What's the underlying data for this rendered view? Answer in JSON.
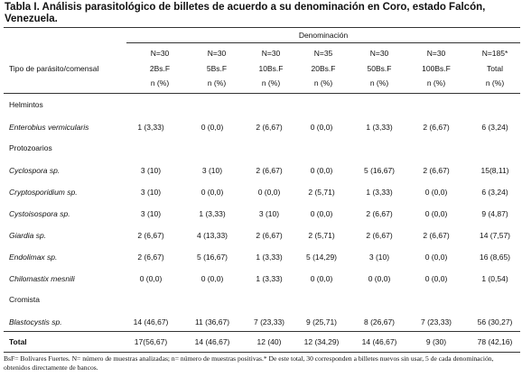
{
  "title": "Tabla I. Análisis parasitológico de billetes de acuerdo a su denominación en Coro, estado Falcón, Venezuela.",
  "table": {
    "group_header": "Denominación",
    "row_header": "Tipo de parásito/comensal",
    "columns": [
      {
        "n": "N=30",
        "denomination": "2Bs.F",
        "unit": "n (%)"
      },
      {
        "n": "N=30",
        "denomination": "5Bs.F",
        "unit": "n (%)"
      },
      {
        "n": "N=30",
        "denomination": "10Bs.F",
        "unit": "n (%)"
      },
      {
        "n": "N=35",
        "denomination": "20Bs.F",
        "unit": "n (%)"
      },
      {
        "n": "N=30",
        "denomination": "50Bs.F",
        "unit": "n (%)"
      },
      {
        "n": "N=30",
        "denomination": "100Bs.F",
        "unit": "n (%)"
      },
      {
        "n": "N=185*",
        "denomination": "Total",
        "unit": "n (%)"
      }
    ],
    "sections": [
      {
        "name": "Helmintos",
        "rows": [
          {
            "label": "Enterobius vermicularis",
            "values": [
              "1 (3,33)",
              "0 (0,0)",
              "2 (6,67)",
              "0 (0,0)",
              "1 (3,33)",
              "2 (6,67)",
              "6 (3,24)"
            ]
          }
        ]
      },
      {
        "name": "Protozoarios",
        "rows": [
          {
            "label": "Cyclospora sp.",
            "values": [
              "3 (10)",
              "3 (10)",
              "2 (6,67)",
              "0 (0,0)",
              "5 (16,67)",
              "2 (6,67)",
              "15(8,11)"
            ]
          },
          {
            "label": "Cryptosporidium sp.",
            "values": [
              "3 (10)",
              "0 (0,0)",
              "0 (0,0)",
              "2 (5,71)",
              "1 (3,33)",
              "0 (0,0)",
              "6 (3,24)"
            ]
          },
          {
            "label": "Cystoisospora sp.",
            "values": [
              "3 (10)",
              "1 (3,33)",
              "3 (10)",
              "0 (0,0)",
              "2 (6,67)",
              "0 (0,0)",
              "9 (4,87)"
            ]
          },
          {
            "label": "Giardia sp.",
            "values": [
              "2 (6,67)",
              "4 (13,33)",
              "2 (6,67)",
              "2 (5,71)",
              "2 (6,67)",
              "2 (6,67)",
              "14 (7,57)"
            ]
          },
          {
            "label": "Endolimax sp.",
            "values": [
              "2 (6,67)",
              "5 (16,67)",
              "1 (3,33)",
              "5 (14,29)",
              "3 (10)",
              "0 (0,0)",
              "16 (8,65)"
            ]
          },
          {
            "label": "Chilomastix mesnili",
            "values": [
              "0 (0,0)",
              "0 (0,0)",
              "1 (3,33)",
              "0 (0,0)",
              "0 (0,0)",
              "0 (0,0)",
              "1 (0,54)"
            ]
          }
        ]
      },
      {
        "name": "Cromista",
        "rows": [
          {
            "label": "Blastocystis sp.",
            "values": [
              "14 (46,67)",
              "11 (36,67)",
              "7 (23,33)",
              "9 (25,71)",
              "8 (26,67)",
              "7 (23,33)",
              "56 (30,27)"
            ]
          }
        ]
      }
    ],
    "total": {
      "label": "Total",
      "values": [
        "17(56,67)",
        "14 (46,67)",
        "12 (40)",
        "12 (34,29)",
        "14 (46,67)",
        "9 (30)",
        "78 (42,16)"
      ]
    }
  },
  "footnote": "BsF= Bolívares Fuertes. N= número de muestras analizadas; n= número de muestras positivas.* De este total, 30 corresponden a billetes nuevos sin usar, 5 de cada denominación, obtenidos directamente de bancos."
}
